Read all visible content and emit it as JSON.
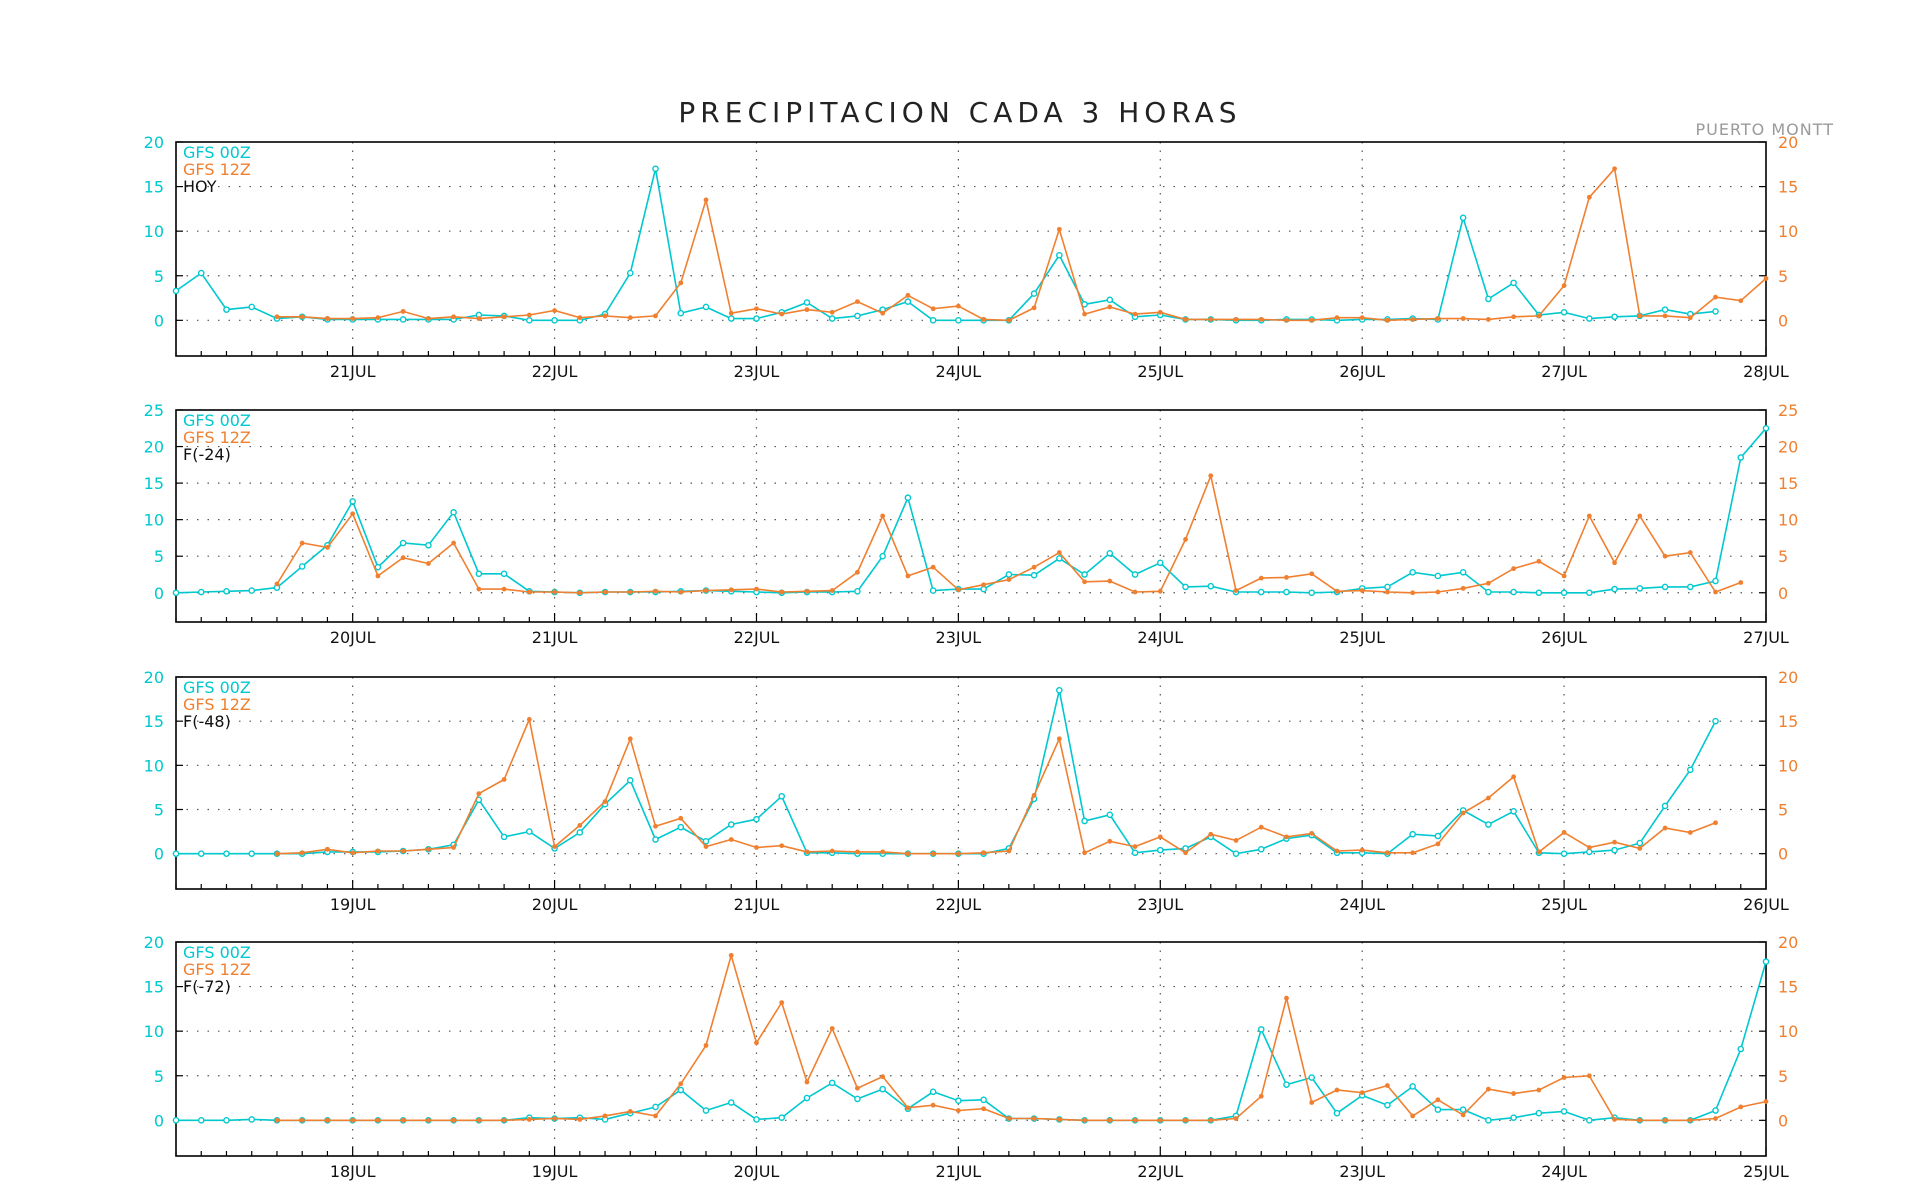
{
  "header": {
    "title": "PRECIPITACION CADA 3 HORAS",
    "station": "PUERTO MONTT"
  },
  "colors": {
    "gfs00": "#00c8cf",
    "gfs12": "#f08030",
    "frame": "#000000",
    "grid": "#555555"
  },
  "chart_data": [
    {
      "type": "line",
      "legend": [
        "GFS 00Z",
        "GFS 12Z",
        "HOY"
      ],
      "ylim": [
        -4,
        20
      ],
      "yticks": [
        0,
        5,
        10,
        15,
        20
      ],
      "xlim": [
        -7,
        56
      ],
      "x_ticks": [
        {
          "x": 0,
          "label": "21JUL"
        },
        {
          "x": 8,
          "label": "22JUL"
        },
        {
          "x": 16,
          "label": "23JUL"
        },
        {
          "x": 24,
          "label": "24JUL"
        },
        {
          "x": 32,
          "label": "25JUL"
        },
        {
          "x": 40,
          "label": "26JUL"
        },
        {
          "x": 48,
          "label": "27JUL"
        },
        {
          "x": 56,
          "label": "28JUL"
        }
      ],
      "series": [
        {
          "name": "GFS 00Z",
          "x0": -7,
          "values": [
            3.3,
            5.3,
            1.2,
            1.5,
            0.2,
            0.4,
            0.1,
            0.1,
            0.1,
            0.1,
            0.1,
            0.1,
            0.6,
            0.5,
            0,
            0,
            0,
            0.7,
            5.3,
            17,
            0.8,
            1.5,
            0.2,
            0.2,
            0.9,
            2,
            0.2,
            0.5,
            1.2,
            2.1,
            0,
            0,
            0,
            0,
            3,
            7.3,
            1.8,
            2.3,
            0.4,
            0.6,
            0.1,
            0.1,
            0,
            0,
            0.1,
            0.1,
            0,
            0.1,
            0.1,
            0.2,
            0.1,
            11.5,
            2.4,
            4.2,
            0.6,
            0.9,
            0.2,
            0.4,
            0.5,
            1.2,
            0.7,
            1
          ]
        },
        {
          "name": "GFS 12Z",
          "x0": -3,
          "values": [
            0.4,
            0.4,
            0.2,
            0.2,
            0.3,
            1,
            0.2,
            0.4,
            0.2,
            0.4,
            0.6,
            1.1,
            0.3,
            0.5,
            0.3,
            0.5,
            4.2,
            13.5,
            0.8,
            1.3,
            0.7,
            1.2,
            0.9,
            2.1,
            0.8,
            2.8,
            1.3,
            1.6,
            0.1,
            0,
            1.4,
            10.2,
            0.7,
            1.5,
            0.7,
            0.9,
            0.1,
            0.1,
            0.1,
            0.1,
            0,
            0,
            0.3,
            0.3,
            0,
            0.1,
            0.2,
            0.2,
            0.1,
            0.4,
            0.5,
            3.9,
            13.8,
            17,
            0.5,
            0.5,
            0.3,
            2.6,
            2.2,
            4.7
          ]
        }
      ]
    },
    {
      "type": "line",
      "legend": [
        "GFS 00Z",
        "GFS 12Z",
        "F(-24)"
      ],
      "ylim": [
        -4,
        25
      ],
      "yticks": [
        0,
        5,
        10,
        15,
        20,
        25
      ],
      "xlim": [
        -7,
        56
      ],
      "x_ticks": [
        {
          "x": 0,
          "label": "20JUL"
        },
        {
          "x": 8,
          "label": "21JUL"
        },
        {
          "x": 16,
          "label": "22JUL"
        },
        {
          "x": 24,
          "label": "23JUL"
        },
        {
          "x": 32,
          "label": "24JUL"
        },
        {
          "x": 40,
          "label": "25JUL"
        },
        {
          "x": 48,
          "label": "26JUL"
        },
        {
          "x": 56,
          "label": "27JUL"
        }
      ],
      "series": [
        {
          "name": "GFS 00Z",
          "x0": -7,
          "values": [
            0,
            0.1,
            0.2,
            0.3,
            0.7,
            3.6,
            6.5,
            12.5,
            3.5,
            6.8,
            6.5,
            11,
            2.6,
            2.6,
            0.2,
            0.1,
            0,
            0.1,
            0.1,
            0.1,
            0.2,
            0.3,
            0.2,
            0.1,
            0,
            0.1,
            0.1,
            0.2,
            5,
            13,
            0.3,
            0.5,
            0.5,
            2.5,
            2.4,
            4.7,
            2.5,
            5.4,
            2.5,
            4.1,
            0.8,
            0.9,
            0.1,
            0.1,
            0.1,
            0,
            0.1,
            0.6,
            0.8,
            2.8,
            2.3,
            2.8,
            0.1,
            0.1,
            0,
            0,
            0,
            0.5,
            0.6,
            0.8,
            0.8,
            1.6,
            18.5,
            22.5
          ]
        },
        {
          "name": "GFS 12Z",
          "x0": -3,
          "values": [
            1.2,
            6.8,
            6.2,
            10.8,
            2.3,
            4.8,
            4,
            6.8,
            0.5,
            0.5,
            0.1,
            0.1,
            0,
            0.1,
            0.1,
            0.2,
            0.1,
            0.3,
            0.4,
            0.5,
            0.1,
            0.2,
            0.3,
            2.8,
            10.5,
            2.3,
            3.5,
            0.4,
            1.1,
            1.8,
            3.5,
            5.5,
            1.5,
            1.6,
            0.1,
            0.2,
            7.3,
            16,
            0.3,
            2,
            2.1,
            2.6,
            0.2,
            0.3,
            0.1,
            0,
            0.1,
            0.6,
            1.3,
            3.3,
            4.3,
            2.3,
            10.5,
            4.1,
            10.5,
            5,
            5.5,
            0.1,
            1.4
          ]
        }
      ]
    },
    {
      "type": "line",
      "legend": [
        "GFS 00Z",
        "GFS 12Z",
        "F(-48)"
      ],
      "ylim": [
        -4,
        20
      ],
      "yticks": [
        0,
        5,
        10,
        15,
        20
      ],
      "xlim": [
        -7,
        56
      ],
      "x_ticks": [
        {
          "x": 0,
          "label": "19JUL"
        },
        {
          "x": 8,
          "label": "20JUL"
        },
        {
          "x": 16,
          "label": "21JUL"
        },
        {
          "x": 24,
          "label": "22JUL"
        },
        {
          "x": 32,
          "label": "23JUL"
        },
        {
          "x": 40,
          "label": "24JUL"
        },
        {
          "x": 48,
          "label": "25JUL"
        },
        {
          "x": 56,
          "label": "26JUL"
        }
      ],
      "series": [
        {
          "name": "GFS 00Z",
          "x0": -7,
          "values": [
            0,
            0,
            0,
            0,
            0,
            0,
            0.2,
            0.2,
            0.2,
            0.3,
            0.5,
            1,
            6.1,
            1.9,
            2.5,
            0.6,
            2.4,
            5.6,
            8.3,
            1.6,
            3,
            1.4,
            3.3,
            3.9,
            6.5,
            0.1,
            0.1,
            0,
            0,
            0,
            0,
            0,
            0,
            0.6,
            6.2,
            18.5,
            3.7,
            4.4,
            0.1,
            0.4,
            0.6,
            1.9,
            0,
            0.5,
            1.7,
            2.1,
            0.1,
            0.1,
            0,
            2.2,
            2,
            4.9,
            3.3,
            4.8,
            0.1,
            0,
            0.2,
            0.4,
            1.2,
            5.4,
            9.5,
            15
          ]
        },
        {
          "name": "GFS 12Z",
          "x0": -3,
          "values": [
            0,
            0.1,
            0.5,
            0.1,
            0.3,
            0.3,
            0.5,
            0.7,
            6.8,
            8.4,
            15.2,
            0.8,
            3.2,
            5.9,
            13,
            3.1,
            4,
            0.8,
            1.6,
            0.7,
            0.9,
            0.2,
            0.3,
            0.2,
            0.2,
            0,
            0,
            0,
            0.1,
            0.3,
            6.6,
            13,
            0.1,
            1.4,
            0.8,
            1.9,
            0.1,
            2.2,
            1.5,
            3,
            1.9,
            2.3,
            0.3,
            0.4,
            0.1,
            0.1,
            1.1,
            4.6,
            6.3,
            8.7,
            0.2,
            2.4,
            0.7,
            1.3,
            0.6,
            2.9,
            2.4,
            3.5
          ]
        }
      ]
    },
    {
      "type": "line",
      "legend": [
        "GFS 00Z",
        "GFS 12Z",
        "F(-72)"
      ],
      "ylim": [
        -4,
        20
      ],
      "yticks": [
        0,
        5,
        10,
        15,
        20
      ],
      "xlim": [
        -7,
        56
      ],
      "x_ticks": [
        {
          "x": 0,
          "label": "18JUL"
        },
        {
          "x": 8,
          "label": "19JUL"
        },
        {
          "x": 16,
          "label": "20JUL"
        },
        {
          "x": 24,
          "label": "21JUL"
        },
        {
          "x": 32,
          "label": "22JUL"
        },
        {
          "x": 40,
          "label": "23JUL"
        },
        {
          "x": 48,
          "label": "24JUL"
        },
        {
          "x": 56,
          "label": "25JUL"
        }
      ],
      "series": [
        {
          "name": "GFS 00Z",
          "x0": -7,
          "values": [
            0,
            0,
            0,
            0.1,
            0,
            0,
            0,
            0,
            0,
            0,
            0,
            0,
            0,
            0,
            0.3,
            0.2,
            0.3,
            0.1,
            0.8,
            1.5,
            3.4,
            1.1,
            2,
            0.1,
            0.3,
            2.5,
            4.2,
            2.4,
            3.5,
            1.3,
            3.2,
            2.2,
            2.3,
            0.2,
            0.2,
            0.1,
            0,
            0,
            0,
            0,
            0,
            0,
            0.5,
            10.2,
            4,
            4.8,
            0.8,
            2.8,
            1.7,
            3.8,
            1.2,
            1.2,
            0,
            0.3,
            0.8,
            1,
            0,
            0.3,
            0,
            0,
            0,
            1.1,
            8,
            17.8
          ]
        },
        {
          "name": "GFS 12Z",
          "x0": -3,
          "values": [
            0,
            0,
            0,
            0,
            0,
            0,
            0,
            0,
            0,
            0,
            0.1,
            0.2,
            0.1,
            0.5,
            1,
            0.5,
            4.1,
            8.4,
            18.5,
            8.7,
            13.2,
            4.3,
            10.3,
            3.6,
            4.9,
            1.4,
            1.7,
            1.1,
            1.3,
            0.2,
            0.2,
            0.1,
            0,
            0,
            0,
            0,
            0,
            0,
            0.2,
            2.7,
            13.7,
            2,
            3.4,
            3.1,
            3.9,
            0.5,
            2.3,
            0.6,
            3.5,
            3,
            3.4,
            4.8,
            5,
            0.1,
            0,
            0,
            0,
            0.2,
            1.5,
            2.1
          ]
        }
      ]
    }
  ]
}
